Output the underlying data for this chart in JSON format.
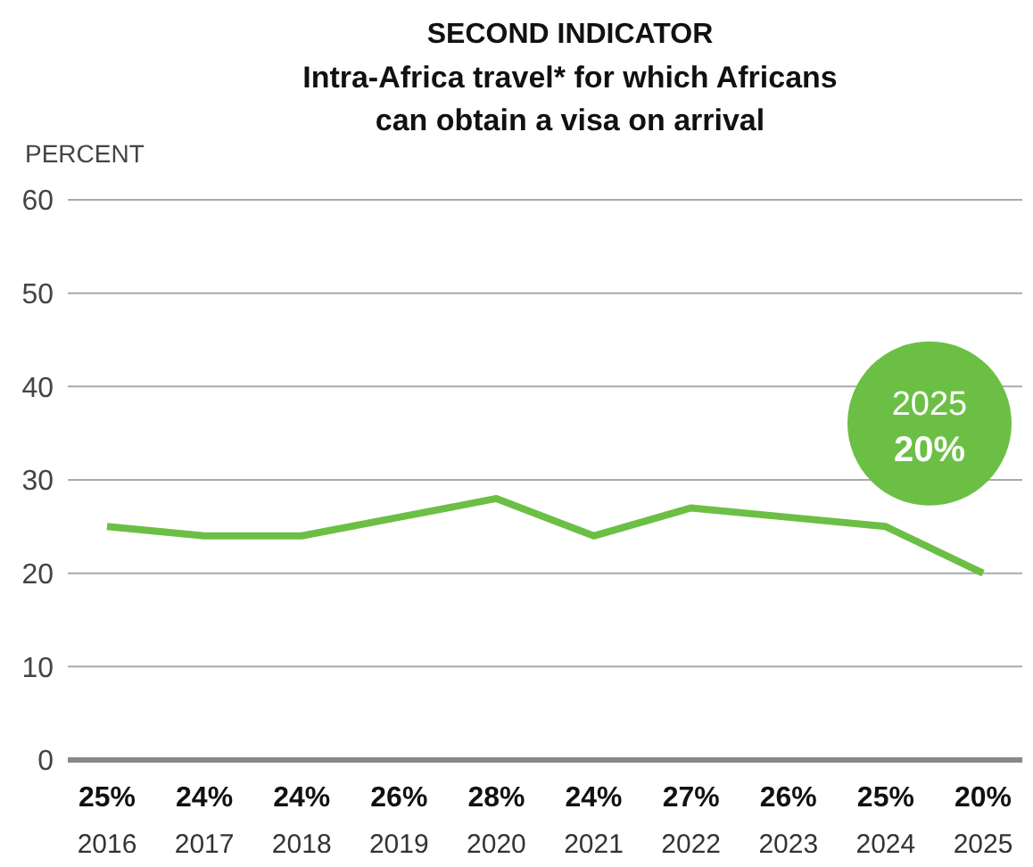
{
  "chart_data": {
    "type": "line",
    "title": "SECOND INDICATOR",
    "subtitle": "Intra-Africa travel* for which Africans can obtain a visa on arrival",
    "ylabel": "PERCENT",
    "categories": [
      "2016",
      "2017",
      "2018",
      "2019",
      "2020",
      "2021",
      "2022",
      "2023",
      "2024",
      "2025"
    ],
    "series": [
      {
        "color": "#6cbf45",
        "values": [
          25,
          24,
          24,
          26,
          28,
          24,
          27,
          26,
          25,
          20
        ],
        "value_labels": [
          "25%",
          "24%",
          "24%",
          "26%",
          "28%",
          "24%",
          "27%",
          "26%",
          "25%",
          "20%"
        ]
      }
    ],
    "ylim": [
      0,
      60
    ],
    "yticks": [
      0,
      10,
      20,
      30,
      40,
      50,
      60
    ],
    "grid": "y",
    "marker": "none",
    "line_style": "solid",
    "annotations": [
      "2025",
      "20%"
    ]
  }
}
